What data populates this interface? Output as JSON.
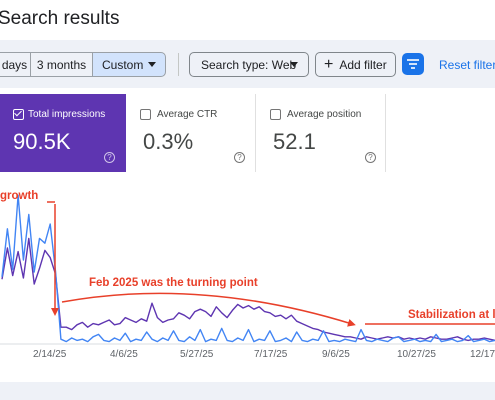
{
  "page": {
    "title": "Search results"
  },
  "toolbar": {
    "ranges": [
      "days",
      "3 months",
      "Custom"
    ],
    "search_type": "Search type: Web",
    "add_filter": "Add filter",
    "reset": "Reset filters"
  },
  "metrics": [
    {
      "label": "Total impressions",
      "value": "90.5K",
      "selected": true
    },
    {
      "label": "Average CTR",
      "value": "0.3%",
      "selected": false
    },
    {
      "label": "Average position",
      "value": "52.1",
      "selected": false
    }
  ],
  "annotations": {
    "growth": "growth",
    "turning": "Feb 2025 was the turning point",
    "stabilization": "Stabilization at l"
  },
  "chart_data": {
    "type": "line",
    "x_ticks": [
      "2/14/25",
      "4/6/25",
      "5/27/25",
      "7/17/25",
      "9/6/25",
      "10/27/25",
      "12/17"
    ],
    "series": [
      {
        "color": "#5e35b1",
        "values": [
          54,
          80,
          57,
          77,
          55,
          88,
          50,
          63,
          78,
          72,
          58,
          14,
          14,
          12,
          16,
          18,
          14,
          17,
          16,
          18,
          20,
          16,
          17,
          22,
          20,
          18,
          21,
          19,
          34,
          22,
          18,
          20,
          21,
          26,
          24,
          21,
          27,
          29,
          27,
          23,
          31,
          26,
          22,
          28,
          33,
          30,
          32,
          29,
          31,
          27,
          26,
          23,
          24,
          21,
          24,
          19,
          17,
          15,
          13,
          12,
          10,
          9,
          8,
          7,
          6,
          6,
          5,
          4,
          6,
          5,
          4,
          5,
          6,
          5,
          6,
          4,
          5,
          4,
          5,
          4,
          6,
          5,
          4,
          4,
          5,
          6,
          4,
          3,
          4,
          4,
          5,
          4,
          3
        ]
      },
      {
        "color": "#4285f4",
        "values": [
          56,
          96,
          62,
          124,
          70,
          108,
          60,
          88,
          84,
          100,
          60,
          4,
          2,
          5,
          3,
          4,
          2,
          6,
          8,
          3,
          2,
          5,
          3,
          9,
          2,
          4,
          3,
          10,
          4,
          2,
          5,
          3,
          11,
          3,
          2,
          6,
          3,
          12,
          2,
          4,
          3,
          13,
          3,
          2,
          5,
          3,
          12,
          2,
          4,
          3,
          11,
          2,
          3,
          5,
          2,
          10,
          3,
          2,
          4,
          3,
          11,
          2,
          3,
          2,
          4,
          3,
          2,
          12,
          3,
          2,
          4,
          3,
          2,
          5,
          6,
          2,
          3,
          4,
          2,
          3,
          2,
          8,
          2,
          3,
          4,
          2,
          3,
          7,
          2,
          3,
          4,
          2,
          3
        ]
      }
    ],
    "colors": {
      "accent": "#1a73e8",
      "impressions_card": "#5e35b1",
      "annotation": "#e8402a"
    }
  }
}
